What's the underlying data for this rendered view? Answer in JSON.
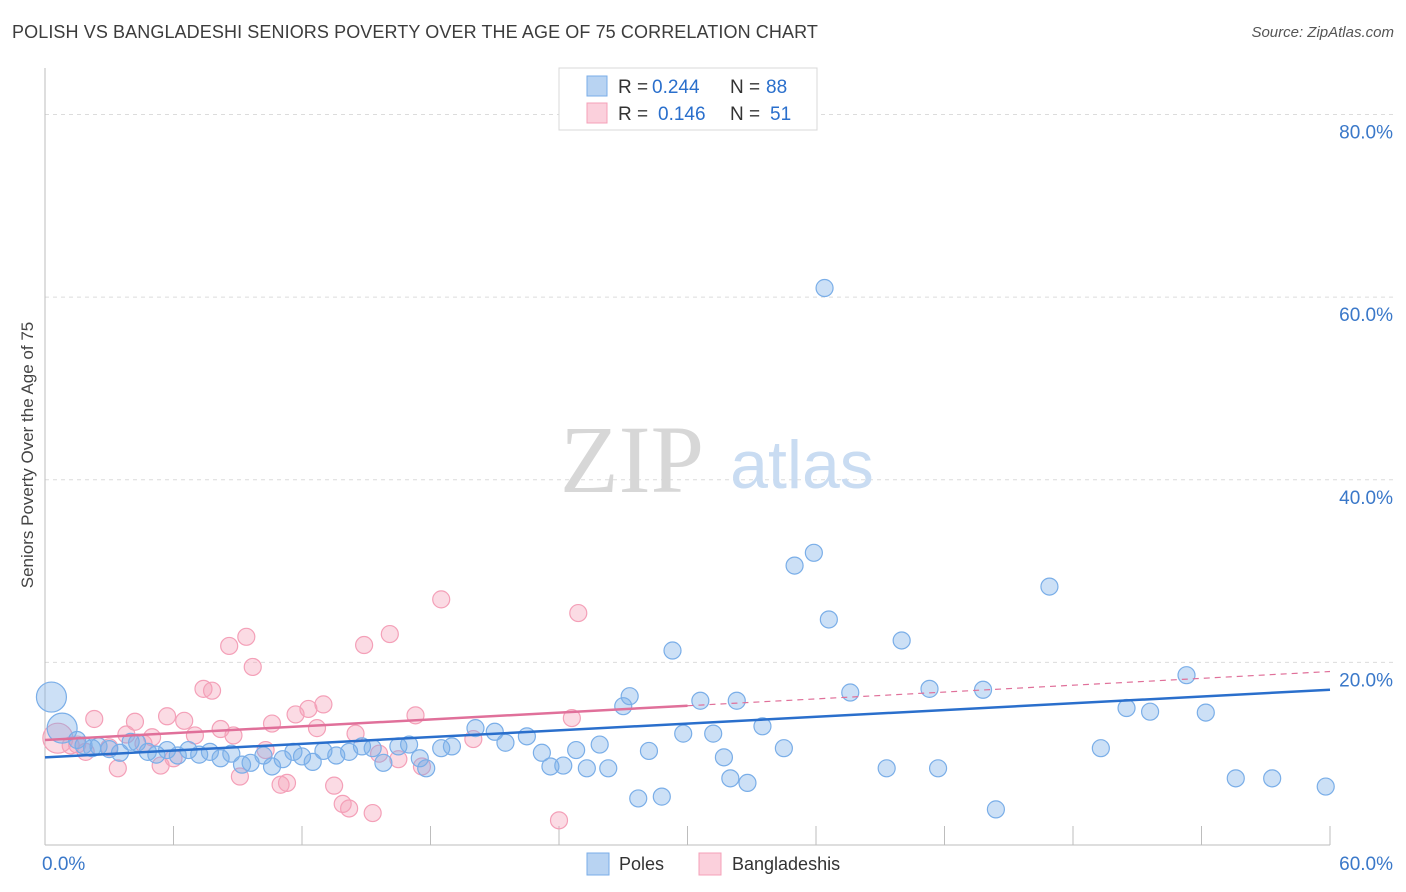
{
  "title": "POLISH VS BANGLADESHI SENIORS POVERTY OVER THE AGE OF 75 CORRELATION CHART",
  "source": "Source: ZipAtlas.com",
  "watermark": {
    "zip": "ZIP",
    "atlas": "atlas"
  },
  "legend_top": [
    {
      "r_label": "R =",
      "r_value": "0.244",
      "n_label": "N =",
      "n_value": "88",
      "color": "#7aaee8"
    },
    {
      "r_label": "R =",
      "r_value": "0.146",
      "n_label": "N =",
      "n_value": "51",
      "color": "#f4a0b8"
    }
  ],
  "legend_bottom": [
    {
      "label": "Poles",
      "color": "#7aaee8"
    },
    {
      "label": "Bangladeshis",
      "color": "#f4a0b8"
    }
  ],
  "chart_data": {
    "type": "scatter",
    "ylabel": "Seniors Poverty Over the Age of 75",
    "xlim": [
      0,
      60
    ],
    "ylim": [
      0,
      84
    ],
    "x_tick_labels": [
      {
        "value": 0,
        "label": "0.0%"
      },
      {
        "value": 60,
        "label": "60.0%"
      }
    ],
    "y_tick_labels": [
      {
        "value": 20,
        "label": "20.0%"
      },
      {
        "value": 40,
        "label": "40.0%"
      },
      {
        "value": 60,
        "label": "60.0%"
      },
      {
        "value": 80,
        "label": "80.0%"
      }
    ],
    "grid": "horizontal dashed",
    "series": [
      {
        "name": "Poles",
        "color": "#7aaee8",
        "line_color": "#2a6fcc",
        "trend": {
          "x": [
            0,
            60
          ],
          "y": [
            9.6,
            17.0
          ]
        },
        "points": [
          [
            0.3,
            16.2,
            "L"
          ],
          [
            0.8,
            12.8,
            "L"
          ],
          [
            1.5,
            11.5
          ],
          [
            1.8,
            10.9
          ],
          [
            2.2,
            10.6
          ],
          [
            2.5,
            10.8
          ],
          [
            3.0,
            10.5
          ],
          [
            3.5,
            10.1
          ],
          [
            4.0,
            11.3
          ],
          [
            4.3,
            11.2
          ],
          [
            4.8,
            10.2
          ],
          [
            5.2,
            9.9
          ],
          [
            5.7,
            10.4
          ],
          [
            6.2,
            9.8
          ],
          [
            6.7,
            10.4
          ],
          [
            7.2,
            9.9
          ],
          [
            7.7,
            10.2
          ],
          [
            8.2,
            9.5
          ],
          [
            8.7,
            10.0
          ],
          [
            9.2,
            8.8
          ],
          [
            9.6,
            9.0
          ],
          [
            10.2,
            9.8
          ],
          [
            10.6,
            8.6
          ],
          [
            11.1,
            9.4
          ],
          [
            11.6,
            10.2
          ],
          [
            12.0,
            9.7
          ],
          [
            12.5,
            9.1
          ],
          [
            13.0,
            10.3
          ],
          [
            13.6,
            9.8
          ],
          [
            14.2,
            10.2
          ],
          [
            14.8,
            10.8
          ],
          [
            15.3,
            10.6
          ],
          [
            15.8,
            9.0
          ],
          [
            16.5,
            10.8
          ],
          [
            17.0,
            11.0
          ],
          [
            17.5,
            9.5
          ],
          [
            17.8,
            8.4
          ],
          [
            18.5,
            10.6
          ],
          [
            19.0,
            10.8
          ],
          [
            20.1,
            12.8
          ],
          [
            21.0,
            12.4
          ],
          [
            21.5,
            11.2
          ],
          [
            22.5,
            11.9
          ],
          [
            23.2,
            10.1
          ],
          [
            23.6,
            8.6
          ],
          [
            24.2,
            8.7
          ],
          [
            24.8,
            10.4
          ],
          [
            25.3,
            8.4
          ],
          [
            25.9,
            11.0
          ],
          [
            26.3,
            8.4
          ],
          [
            27.0,
            15.2
          ],
          [
            27.3,
            16.3
          ],
          [
            27.7,
            5.1
          ],
          [
            28.2,
            10.3
          ],
          [
            28.8,
            5.3
          ],
          [
            29.3,
            21.3
          ],
          [
            29.8,
            12.2
          ],
          [
            30.6,
            15.8
          ],
          [
            31.2,
            12.2
          ],
          [
            31.7,
            9.6
          ],
          [
            32.0,
            7.3
          ],
          [
            32.3,
            15.8
          ],
          [
            32.8,
            6.8
          ],
          [
            33.5,
            13.0
          ],
          [
            34.5,
            10.6
          ],
          [
            35.0,
            30.6
          ],
          [
            35.9,
            32.0
          ],
          [
            36.6,
            24.7
          ],
          [
            36.4,
            61.0
          ],
          [
            37.6,
            16.7
          ],
          [
            39.3,
            8.4
          ],
          [
            40.0,
            22.4
          ],
          [
            41.3,
            17.1
          ],
          [
            41.7,
            8.4
          ],
          [
            43.8,
            17.0
          ],
          [
            44.4,
            3.9
          ],
          [
            46.9,
            28.3
          ],
          [
            49.3,
            10.6
          ],
          [
            50.5,
            15.0
          ],
          [
            51.6,
            14.6
          ],
          [
            53.3,
            18.6
          ],
          [
            54.2,
            14.5
          ],
          [
            55.6,
            7.3
          ],
          [
            57.3,
            7.3
          ],
          [
            59.8,
            6.4
          ]
        ]
      },
      {
        "name": "Bangladeshis",
        "color": "#f4a0b8",
        "line_color": "#e0709a",
        "trend": {
          "x": [
            0,
            60
          ],
          "y": [
            11.5,
            19.0
          ],
          "solid_until": 30
        },
        "points": [
          [
            0.6,
            11.7,
            "L"
          ],
          [
            1.2,
            10.9
          ],
          [
            1.5,
            11.0
          ],
          [
            1.9,
            10.2
          ],
          [
            2.3,
            13.8
          ],
          [
            3.0,
            10.7
          ],
          [
            3.4,
            8.4
          ],
          [
            3.8,
            12.1
          ],
          [
            4.2,
            13.5
          ],
          [
            4.6,
            11.1
          ],
          [
            5.0,
            11.8
          ],
          [
            5.4,
            8.7
          ],
          [
            5.7,
            14.1
          ],
          [
            6.0,
            9.5
          ],
          [
            6.5,
            13.6
          ],
          [
            7.0,
            12.0
          ],
          [
            7.4,
            17.1
          ],
          [
            7.8,
            16.9
          ],
          [
            8.2,
            12.7
          ],
          [
            8.6,
            21.8
          ],
          [
            8.8,
            12.0
          ],
          [
            9.1,
            7.5
          ],
          [
            9.4,
            22.8
          ],
          [
            9.7,
            19.5
          ],
          [
            10.3,
            10.4
          ],
          [
            10.6,
            13.3
          ],
          [
            11.0,
            6.6
          ],
          [
            11.3,
            6.8
          ],
          [
            11.7,
            14.3
          ],
          [
            12.3,
            14.9
          ],
          [
            12.7,
            12.8
          ],
          [
            13.0,
            15.4
          ],
          [
            13.5,
            6.5
          ],
          [
            13.9,
            4.5
          ],
          [
            14.2,
            4.0
          ],
          [
            14.5,
            12.2
          ],
          [
            14.9,
            21.9
          ],
          [
            15.3,
            3.5
          ],
          [
            15.6,
            10.0
          ],
          [
            16.1,
            23.1
          ],
          [
            16.5,
            9.4
          ],
          [
            17.3,
            14.2
          ],
          [
            17.6,
            8.6
          ],
          [
            18.5,
            26.9
          ],
          [
            20.0,
            11.6
          ],
          [
            24.0,
            2.7
          ],
          [
            24.6,
            13.9
          ],
          [
            24.9,
            25.4
          ]
        ]
      }
    ]
  }
}
